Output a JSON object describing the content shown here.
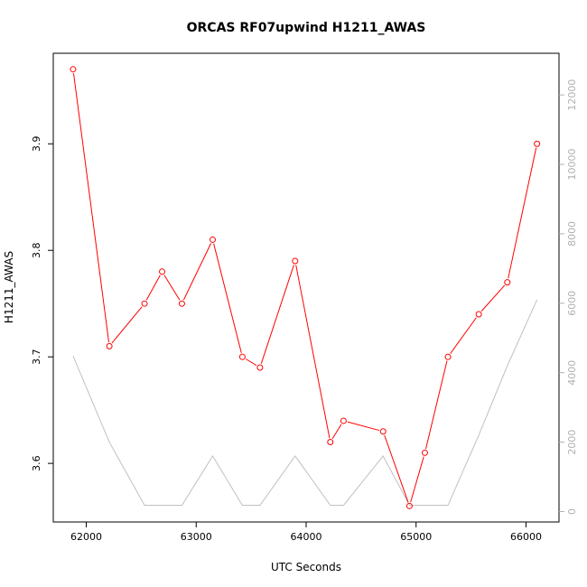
{
  "chart_data": {
    "type": "line",
    "title": "ORCAS RF07upwind H1211_AWAS",
    "xlabel": "UTC Seconds",
    "ylabel": "H1211_AWAS",
    "xlim": [
      61700,
      66300
    ],
    "ylim": [
      3.545,
      3.985
    ],
    "y2lim": [
      -300,
      13200
    ],
    "x_ticks": [
      62000,
      63000,
      64000,
      65000,
      66000
    ],
    "y_ticks": [
      3.6,
      3.7,
      3.8,
      3.9
    ],
    "y2_ticks": [
      0,
      2000,
      4000,
      6000,
      8000,
      10000,
      12000
    ],
    "grid": false,
    "colors": {
      "primary": "#ff0000",
      "secondary": "#c0c0c0"
    },
    "series": [
      {
        "axis": "left",
        "marker": "open-circle",
        "x": [
          61880,
          62210,
          62530,
          62690,
          62870,
          63150,
          63420,
          63580,
          63900,
          64220,
          64340,
          64700,
          64940,
          65080,
          65290,
          65570,
          65830,
          66100
        ],
        "y": [
          3.97,
          3.71,
          3.75,
          3.78,
          3.75,
          3.81,
          3.7,
          3.69,
          3.79,
          3.62,
          3.64,
          3.63,
          3.56,
          3.61,
          3.7,
          3.74,
          3.77,
          3.9
        ]
      },
      {
        "axis": "right",
        "marker": "none",
        "x": [
          61880,
          62210,
          62530,
          62870,
          63150,
          63420,
          63580,
          63900,
          64220,
          64340,
          64700,
          64940,
          65080,
          65290,
          65570,
          65830,
          66100
        ],
        "y": [
          4480,
          2000,
          180,
          180,
          1600,
          180,
          180,
          1600,
          180,
          180,
          1600,
          180,
          180,
          180,
          2200,
          4200,
          6100
        ]
      }
    ]
  }
}
